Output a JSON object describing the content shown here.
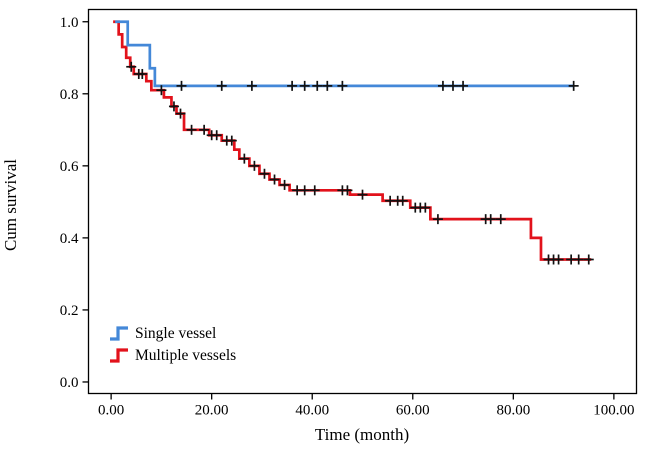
{
  "chart_data": {
    "type": "line",
    "subtype": "kaplan_meier_step",
    "title": "",
    "xlabel": "Time (month)",
    "ylabel": "Cum survival",
    "xticks": [
      0,
      20,
      40,
      60,
      80,
      100
    ],
    "xtick_labels": [
      "0.00",
      "20.00",
      "40.00",
      "60.00",
      "80.00",
      "100.00"
    ],
    "yticks": [
      0,
      0.2,
      0.4,
      0.6,
      0.8,
      1.0
    ],
    "ytick_labels": [
      "0.0",
      "0.2",
      "0.4",
      "0.6",
      "0.8",
      "1.0"
    ],
    "xlim": [
      -4.5,
      104.5
    ],
    "ylim": [
      -0.032,
      1.034
    ],
    "grid": false,
    "legend_position": "lower-left",
    "frame_color": "#000000",
    "censor_marker": "plus",
    "censor_color": "#111111",
    "series": [
      {
        "name": "Single vessel",
        "color": "#4488d8",
        "points": [
          [
            0.8,
            1.0
          ],
          [
            3.3,
            1.0
          ],
          [
            3.3,
            0.935
          ],
          [
            7.7,
            0.935
          ],
          [
            7.7,
            0.871
          ],
          [
            8.7,
            0.871
          ],
          [
            8.7,
            0.822
          ],
          [
            92.0,
            0.822
          ]
        ],
        "censors": [
          [
            14,
            0.822
          ],
          [
            22,
            0.822
          ],
          [
            28,
            0.822
          ],
          [
            36,
            0.822
          ],
          [
            38.5,
            0.822
          ],
          [
            41,
            0.822
          ],
          [
            43,
            0.822
          ],
          [
            46,
            0.822
          ],
          [
            66,
            0.822
          ],
          [
            68,
            0.822
          ],
          [
            70,
            0.822
          ],
          [
            92,
            0.822
          ]
        ]
      },
      {
        "name": "Multiple vessels",
        "color": "#e2121b",
        "points": [
          [
            0.4,
            1.0
          ],
          [
            1.5,
            1.0
          ],
          [
            1.5,
            0.965
          ],
          [
            2.2,
            0.965
          ],
          [
            2.2,
            0.93
          ],
          [
            3.0,
            0.93
          ],
          [
            3.0,
            0.9
          ],
          [
            3.8,
            0.9
          ],
          [
            3.8,
            0.875
          ],
          [
            4.5,
            0.875
          ],
          [
            4.5,
            0.855
          ],
          [
            7.0,
            0.855
          ],
          [
            7.0,
            0.835
          ],
          [
            8.0,
            0.835
          ],
          [
            8.0,
            0.81
          ],
          [
            10.5,
            0.81
          ],
          [
            10.5,
            0.79
          ],
          [
            12.0,
            0.79
          ],
          [
            12.0,
            0.765
          ],
          [
            13.0,
            0.765
          ],
          [
            13.0,
            0.745
          ],
          [
            14.5,
            0.745
          ],
          [
            14.5,
            0.7
          ],
          [
            19.5,
            0.7
          ],
          [
            19.5,
            0.685
          ],
          [
            22.0,
            0.685
          ],
          [
            22.0,
            0.67
          ],
          [
            24.5,
            0.67
          ],
          [
            24.5,
            0.645
          ],
          [
            25.5,
            0.645
          ],
          [
            25.5,
            0.62
          ],
          [
            27.5,
            0.62
          ],
          [
            27.5,
            0.6
          ],
          [
            29.5,
            0.6
          ],
          [
            29.5,
            0.578
          ],
          [
            31.5,
            0.578
          ],
          [
            31.5,
            0.562
          ],
          [
            33.5,
            0.562
          ],
          [
            33.5,
            0.547
          ],
          [
            35.5,
            0.547
          ],
          [
            35.5,
            0.532
          ],
          [
            47.5,
            0.532
          ],
          [
            47.5,
            0.52
          ],
          [
            54.0,
            0.52
          ],
          [
            54.0,
            0.503
          ],
          [
            59.5,
            0.503
          ],
          [
            59.5,
            0.484
          ],
          [
            63.5,
            0.484
          ],
          [
            63.5,
            0.452
          ],
          [
            83.5,
            0.452
          ],
          [
            83.5,
            0.4
          ],
          [
            85.5,
            0.4
          ],
          [
            85.5,
            0.34
          ],
          [
            95.5,
            0.34
          ]
        ],
        "censors": [
          [
            4.0,
            0.875
          ],
          [
            5.5,
            0.855
          ],
          [
            6.2,
            0.855
          ],
          [
            10,
            0.81
          ],
          [
            12.5,
            0.765
          ],
          [
            13.8,
            0.745
          ],
          [
            16,
            0.7
          ],
          [
            18.5,
            0.7
          ],
          [
            20,
            0.685
          ],
          [
            21,
            0.685
          ],
          [
            23,
            0.67
          ],
          [
            24,
            0.67
          ],
          [
            26.5,
            0.62
          ],
          [
            28.5,
            0.6
          ],
          [
            30.5,
            0.578
          ],
          [
            32.5,
            0.562
          ],
          [
            34.5,
            0.547
          ],
          [
            37,
            0.532
          ],
          [
            38.5,
            0.532
          ],
          [
            40.5,
            0.532
          ],
          [
            46,
            0.532
          ],
          [
            47,
            0.532
          ],
          [
            50,
            0.52
          ],
          [
            55.5,
            0.503
          ],
          [
            57,
            0.503
          ],
          [
            58,
            0.503
          ],
          [
            60.5,
            0.484
          ],
          [
            61.5,
            0.484
          ],
          [
            62.5,
            0.484
          ],
          [
            65,
            0.452
          ],
          [
            74.5,
            0.452
          ],
          [
            75.5,
            0.452
          ],
          [
            77.5,
            0.452
          ],
          [
            87,
            0.34
          ],
          [
            88,
            0.34
          ],
          [
            89,
            0.34
          ],
          [
            91.5,
            0.34
          ],
          [
            93,
            0.34
          ],
          [
            95,
            0.34
          ]
        ]
      }
    ]
  }
}
